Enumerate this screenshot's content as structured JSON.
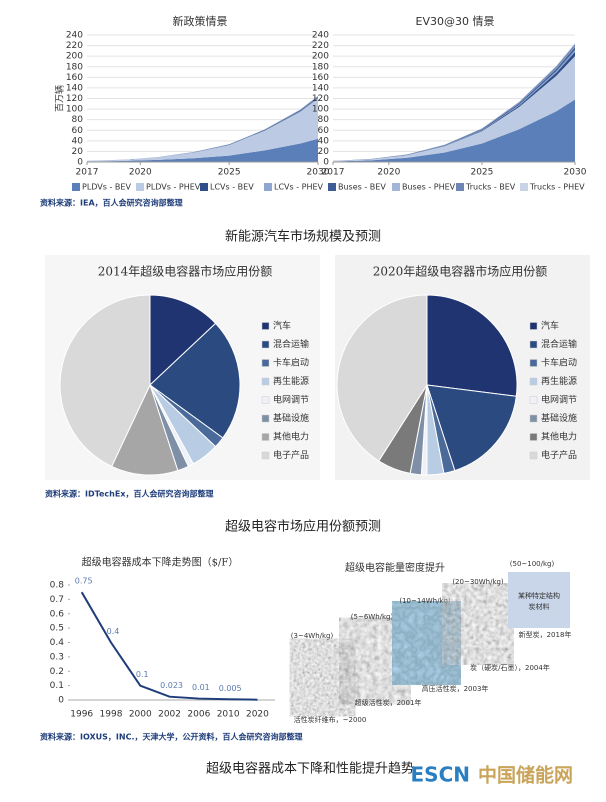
{
  "chart_data": [
    {
      "type": "area",
      "title": "新政策情景",
      "ylabel": "百万辆",
      "x": [
        2017,
        2019,
        2021,
        2023,
        2025,
        2027,
        2029,
        2030
      ],
      "xlim": [
        2017,
        2030
      ],
      "xticks": [
        2017,
        2020,
        2025,
        2030
      ],
      "ylim": [
        0,
        240
      ],
      "yticks": [
        0,
        20,
        40,
        60,
        80,
        100,
        120,
        140,
        160,
        180,
        200,
        220,
        240
      ],
      "grid": true,
      "series": [
        {
          "name": "PLDVs - BEV",
          "color": "#5b7fb8",
          "values": [
            1,
            2,
            4,
            7,
            12,
            22,
            35,
            44
          ]
        },
        {
          "name": "PLDVs - PHEV",
          "color": "#bccbe3",
          "values": [
            1,
            2,
            5,
            11,
            20,
            37,
            60,
            76
          ]
        },
        {
          "name": "LCVs - BEV",
          "color": "#2f4f8a",
          "values": [
            0,
            0,
            0,
            0.1,
            0.2,
            0.5,
            0.8,
            1
          ]
        },
        {
          "name": "LCVs - PHEV",
          "color": "#8ea7d0",
          "values": [
            0,
            0,
            0,
            0.1,
            0.2,
            0.3,
            0.5,
            0.6
          ]
        },
        {
          "name": "Buses - BEV",
          "color": "#3e5d96",
          "values": [
            0.1,
            0.2,
            0.3,
            0.5,
            0.8,
            1.2,
            1.7,
            2
          ]
        },
        {
          "name": "Buses - PHEV",
          "color": "#a4b6d8",
          "values": [
            0,
            0,
            0,
            0.1,
            0.1,
            0.2,
            0.3,
            0.3
          ]
        },
        {
          "name": "Trucks - BEV",
          "color": "#6f86b5",
          "values": [
            0,
            0,
            0,
            0.1,
            0.2,
            0.4,
            0.7,
            1
          ]
        },
        {
          "name": "Trucks - PHEV",
          "color": "#c9d3e6",
          "values": [
            0,
            0,
            0,
            0.1,
            0.1,
            0.2,
            0.4,
            0.5
          ]
        }
      ]
    },
    {
      "type": "area",
      "title": "EV30@30 情景",
      "x": [
        2017,
        2019,
        2021,
        2023,
        2025,
        2027,
        2029,
        2030
      ],
      "xlim": [
        2017,
        2030
      ],
      "xticks": [
        2017,
        2020,
        2025,
        2030
      ],
      "ylim": [
        0,
        240
      ],
      "yticks": [
        0,
        20,
        40,
        60,
        80,
        100,
        120,
        140,
        160,
        180,
        200,
        220,
        240
      ],
      "grid": true,
      "series": [
        {
          "color": "#5b7fb8",
          "values": [
            1,
            3,
            8,
            18,
            35,
            62,
            96,
            118
          ]
        },
        {
          "color": "#bccbe3",
          "values": [
            1,
            2,
            5,
            12,
            23,
            42,
            67,
            82
          ]
        },
        {
          "color": "#2f4f8a",
          "values": [
            0,
            0.1,
            0.3,
            0.7,
            1.4,
            2.6,
            6,
            8
          ]
        },
        {
          "color": "#8ea7d0",
          "values": [
            0,
            0.1,
            0.2,
            0.4,
            0.8,
            1.5,
            3,
            4
          ]
        },
        {
          "color": "#3e5d96",
          "values": [
            0.1,
            0.3,
            0.6,
            1,
            1.8,
            2.8,
            4,
            5
          ]
        },
        {
          "color": "#a4b6d8",
          "values": [
            0,
            0,
            0.1,
            0.1,
            0.2,
            0.4,
            0.8,
            1
          ]
        },
        {
          "color": "#6f86b5",
          "values": [
            0,
            0.1,
            0.2,
            0.5,
            1,
            2,
            4,
            5
          ]
        },
        {
          "color": "#c9d3e6",
          "values": [
            0,
            0,
            0.1,
            0.2,
            0.4,
            0.8,
            1.5,
            2
          ]
        }
      ]
    },
    {
      "type": "pie",
      "title": "2014年超级电容器市场应用份额",
      "categories": [
        "汽车",
        "混合运输",
        "卡车启动",
        "再生能源",
        "电网调节",
        "基础设施",
        "其他电力",
        "电子产品"
      ],
      "values": [
        13,
        22,
        2,
        5,
        1,
        2,
        12,
        43
      ],
      "colors": [
        "#1f3470",
        "#2b4a80",
        "#4a6a9a",
        "#b8cce4",
        "#eef2f8",
        "#7f8fa6",
        "#a6a6a6",
        "#d9d9d9"
      ]
    },
    {
      "type": "pie",
      "title": "2020年超级电容器市场应用份额",
      "categories": [
        "汽车",
        "混合运输",
        "卡车启动",
        "再生能源",
        "电网调节",
        "基础设施",
        "其他电力",
        "电子产品"
      ],
      "values": [
        27,
        18,
        2,
        3,
        1,
        2,
        6,
        41
      ],
      "colors": [
        "#1f3470",
        "#2b4a80",
        "#4a6a9a",
        "#b8cce4",
        "#eef2f8",
        "#7f8fa6",
        "#7a7a7a",
        "#d9d9d9"
      ]
    },
    {
      "type": "line",
      "title": "超级电容器成本下降走势图（$/F）",
      "categories": [
        "1996",
        "1998",
        "2000",
        "2002",
        "2006",
        "2010",
        "2020"
      ],
      "values": [
        0.75,
        0.4,
        0.1,
        0.023,
        0.01,
        0.005,
        0.002
      ],
      "value_labels": [
        "0.75",
        "0.4",
        "0.1",
        "0.023",
        "0.01",
        "0.005",
        null
      ],
      "color": "#1f3d7a",
      "ylim": [
        0,
        0.8
      ],
      "yticks": [
        0,
        0.1,
        0.2,
        0.3,
        0.4,
        0.5,
        0.6,
        0.7,
        0.8
      ]
    }
  ],
  "sources": [
    "资料来源：IEA，百人会研究咨询部整理",
    "资料来源：IDTechEx，百人会研究咨询部整理",
    "资料来源：IOXUS，INC.，天津大学，公开资料，百人会研究咨询部整理"
  ],
  "captions": [
    "新能源汽车市场规模及预测",
    "超级电容市场应用份额预测",
    "超级电容器成本下降和性能提升趋势"
  ],
  "density_figure": {
    "title": "超级电容能量密度提升",
    "items": [
      {
        "range": "(3~4Wh/kg)",
        "era": "活性炭纤维布，~2000"
      },
      {
        "range": "(5~6Wh/kg)",
        "era": "超级活性炭，2001年"
      },
      {
        "range": "(10~14Wh/kg)",
        "era": "高压活性炭，2003年"
      },
      {
        "range": "(20~30Wh/kg)",
        "era": "炭（硬炭/石墨），2004年"
      },
      {
        "range": "(50~100/kg)",
        "era": "新型炭，2018年",
        "box_lines": [
          "某种特定结构",
          "炭材料"
        ]
      }
    ]
  },
  "watermark": {
    "logo": "ESCN",
    "text": "中国储能网"
  }
}
